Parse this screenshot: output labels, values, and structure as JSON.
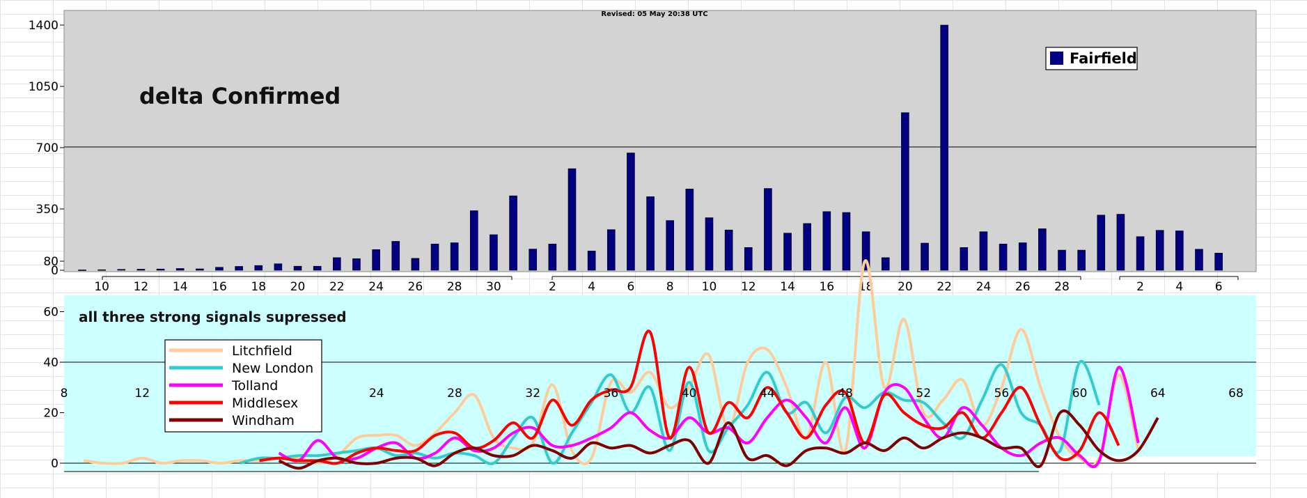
{
  "revised_note": "Revised: 05 May 20:38 UTC",
  "chart_data": [
    {
      "type": "bar",
      "title": "delta Confirmed",
      "legend": {
        "entries": [
          "Fairfield"
        ],
        "position": "top-right"
      },
      "ylim": [
        0,
        1400
      ],
      "y_ticks": [
        0,
        350,
        700,
        1050,
        1400
      ],
      "x_tick_labels": [
        "10",
        "12",
        "14",
        "16",
        "18",
        "20",
        "22",
        "24",
        "26",
        "28",
        "30",
        "2",
        "4",
        "6",
        "8",
        "10",
        "12",
        "14",
        "16",
        "18",
        "20",
        "22",
        "24",
        "26",
        "28",
        "2",
        "4",
        "6"
      ],
      "series": [
        {
          "name": "Fairfield",
          "color": "#000080",
          "values": [
            2,
            3,
            5,
            6,
            7,
            10,
            8,
            17,
            22,
            27,
            37,
            23,
            23,
            72,
            66,
            118,
            165,
            68,
            150,
            157,
            340,
            203,
            425,
            121,
            150,
            580,
            110,
            232,
            670,
            420,
            284,
            464,
            300,
            230,
            130,
            467,
            212,
            267,
            335,
            330,
            220,
            72,
            900,
            155,
            1400,
            130,
            220,
            150,
            157,
            237,
            115,
            115,
            315,
            320,
            192,
            228,
            225,
            120,
            98
          ]
        }
      ]
    },
    {
      "type": "line",
      "title": "all three strong signals supressed",
      "legend": {
        "entries": [
          "Litchfield",
          "New London",
          "Tolland",
          "Middlesex",
          "Windham"
        ],
        "position": "top-left"
      },
      "ylim": [
        0,
        80
      ],
      "y_ticks": [
        0,
        20,
        40,
        60,
        80
      ],
      "xlim": [
        8,
        68
      ],
      "x_ticks": [
        8,
        12,
        16,
        20,
        24,
        28,
        32,
        36,
        40,
        44,
        48,
        52,
        56,
        60,
        64,
        68
      ],
      "series": [
        {
          "name": "Litchfield",
          "color": "#ffcc99",
          "x_start": 9,
          "values": [
            1,
            0,
            0,
            2,
            0,
            1,
            1,
            0,
            1,
            1,
            2,
            2,
            0,
            3,
            10,
            11,
            11,
            7,
            12,
            20,
            27,
            10,
            6,
            8,
            31,
            5,
            2,
            32,
            28,
            36,
            22,
            30,
            43,
            14,
            40,
            45,
            30,
            10,
            40,
            5,
            80,
            30,
            57,
            20,
            25,
            33,
            15,
            30,
            53,
            30,
            10,
            2,
            2,
            35,
            5
          ]
        },
        {
          "name": "New London",
          "color": "#33cccc",
          "x_start": 17,
          "values": [
            0,
            2,
            2,
            3,
            3,
            4,
            5,
            6,
            3,
            4,
            2,
            4,
            3,
            0,
            10,
            18,
            0,
            12,
            24,
            35,
            20,
            30,
            5,
            32,
            5,
            14,
            23,
            36,
            20,
            24,
            12,
            26,
            22,
            28,
            25,
            24,
            16,
            10,
            25,
            39,
            20,
            15,
            5,
            40,
            23
          ]
        },
        {
          "name": "Tolland",
          "color": "#ff00ff",
          "x_start": 19,
          "values": [
            4,
            1,
            9,
            2,
            2,
            6,
            8,
            2,
            4,
            10,
            5,
            6,
            12,
            14,
            7,
            7,
            10,
            14,
            20,
            13,
            10,
            18,
            12,
            14,
            8,
            18,
            25,
            18,
            8,
            22,
            6,
            28,
            30,
            18,
            10,
            22,
            15,
            6,
            3,
            8,
            10,
            3,
            1,
            38,
            8
          ]
        },
        {
          "name": "Middlesex",
          "color": "#ff0000",
          "x_start": 18,
          "values": [
            1,
            2,
            1,
            1,
            0,
            4,
            6,
            5,
            5,
            11,
            12,
            6,
            9,
            16,
            10,
            25,
            15,
            25,
            29,
            30,
            52,
            10,
            38,
            12,
            24,
            18,
            30,
            20,
            10,
            23,
            28,
            8,
            27,
            20,
            15,
            14,
            20,
            10,
            20,
            30,
            15,
            2,
            5,
            20,
            7
          ]
        },
        {
          "name": "Windham",
          "color": "#800000",
          "x_start": 19,
          "values": [
            1,
            -2,
            1,
            2,
            0,
            0,
            2,
            2,
            -1,
            4,
            6,
            3,
            3,
            7,
            5,
            2,
            8,
            6,
            7,
            4,
            7,
            9,
            0,
            16,
            2,
            3,
            -1,
            5,
            6,
            4,
            8,
            5,
            10,
            6,
            10,
            12,
            10,
            6,
            6,
            -1,
            20,
            15,
            5,
            1,
            5,
            18
          ]
        }
      ]
    }
  ]
}
